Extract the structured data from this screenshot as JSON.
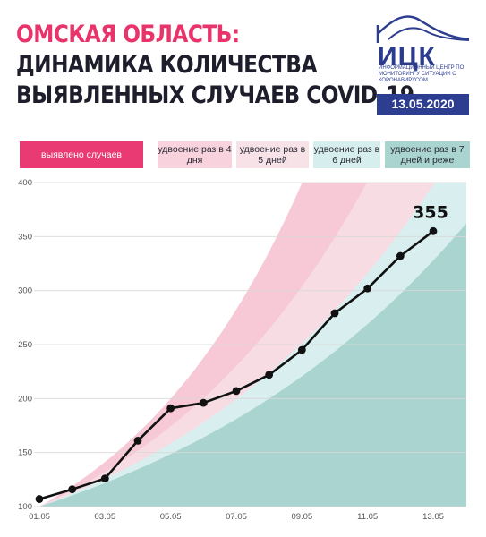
{
  "header": {
    "title_lines": [
      "ОМСКАЯ ОБЛАСТЬ:",
      "ДИНАМИКА КОЛИЧЕСТВА",
      "ВЫЯВЛЕННЫХ СЛУЧАЕВ COVID-19"
    ],
    "logo_text": "ИЦК",
    "logo_subtitle": "ИНФОРМАЦИОННЫЙ ЦЕНТР ПО МОНИТОРИНГУ СИТУАЦИИ С КОРОНАВИРУСОМ",
    "date": "13.05.2020",
    "brand_color": "#2d3e91",
    "accent_color": "#e8336b"
  },
  "legend": [
    {
      "label": "выявлено случаев",
      "color": "#ea3a74",
      "text_color": "#ffffff"
    },
    {
      "label": "удвоение раз в 4 дня",
      "color": "#f8d3dd"
    },
    {
      "label": "удвоение раз в 5 дней",
      "color": "#f7e2e7"
    },
    {
      "label": "удвоение раз в 6 дней",
      "color": "#d6eeee"
    },
    {
      "label": "удвоение раз в 7 дней и реже",
      "color": "#a9d4d0"
    }
  ],
  "chart_data": {
    "type": "line",
    "x": [
      "01.05",
      "02.05",
      "03.05",
      "04.05",
      "05.05",
      "06.05",
      "07.05",
      "08.05",
      "09.05",
      "10.05",
      "11.05",
      "12.05",
      "13.05"
    ],
    "x_tick_labels": [
      "01.05",
      "03.05",
      "05.05",
      "07.05",
      "09.05",
      "11.05",
      "13.05"
    ],
    "y_ticks": [
      100,
      150,
      200,
      250,
      300,
      350,
      400
    ],
    "ylim": [
      100,
      400
    ],
    "series": [
      {
        "values": [
          107,
          116,
          126,
          161,
          191,
          196,
          207,
          222,
          245,
          279,
          302,
          332,
          355
        ],
        "color": "#111111"
      }
    ],
    "last_value_label": "355",
    "bands": [
      {
        "color": "#f6c3d1",
        "start": 100,
        "growth_per_day": 1.189,
        "opacity": 0.9
      },
      {
        "color": "#f7dde4",
        "start": 100,
        "growth_per_day": 1.149,
        "opacity": 0.95
      },
      {
        "color": "#d9efef",
        "start": 100,
        "growth_per_day": 1.122,
        "opacity": 1
      },
      {
        "color": "#a9d4d0",
        "start": 100,
        "growth_per_day": 1.104,
        "opacity": 1
      }
    ],
    "band_max_value": 400
  }
}
